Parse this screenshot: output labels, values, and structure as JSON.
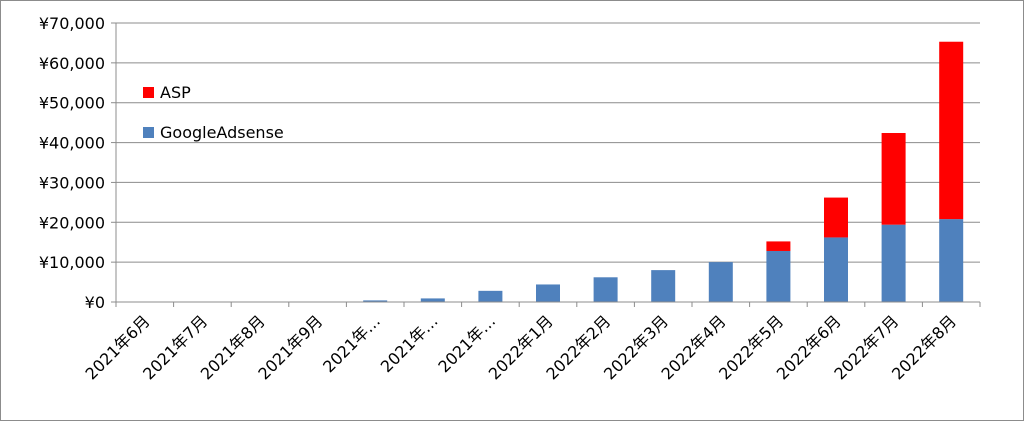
{
  "chart_data": {
    "type": "bar",
    "stacked": true,
    "categories": [
      "2021年6月",
      "2021年7月",
      "2021年8月",
      "2021年9月",
      "2021年…",
      "2021年…",
      "2021年…",
      "2022年1月",
      "2022年2月",
      "2022年3月",
      "2022年4月",
      "2022年5月",
      "2022年6月",
      "2022年7月",
      "2022年8月"
    ],
    "series": [
      {
        "name": "GoogleAdsense",
        "color": "#4f81bd",
        "values": [
          0,
          0,
          0,
          0,
          400,
          900,
          2800,
          4400,
          6200,
          8000,
          10000,
          12800,
          16200,
          19400,
          20800
        ]
      },
      {
        "name": "ASP",
        "color": "#ff0000",
        "values": [
          0,
          0,
          0,
          0,
          0,
          0,
          0,
          0,
          0,
          0,
          0,
          2400,
          10000,
          23000,
          44500
        ]
      }
    ],
    "ylim": [
      0,
      70000
    ],
    "yticks": [
      "¥0",
      "¥10,000",
      "¥20,000",
      "¥30,000",
      "¥40,000",
      "¥50,000",
      "¥60,000",
      "¥70,000"
    ],
    "grid": true,
    "legend": {
      "placement": "top-left",
      "order": [
        "ASP",
        "GoogleAdsense"
      ]
    }
  }
}
